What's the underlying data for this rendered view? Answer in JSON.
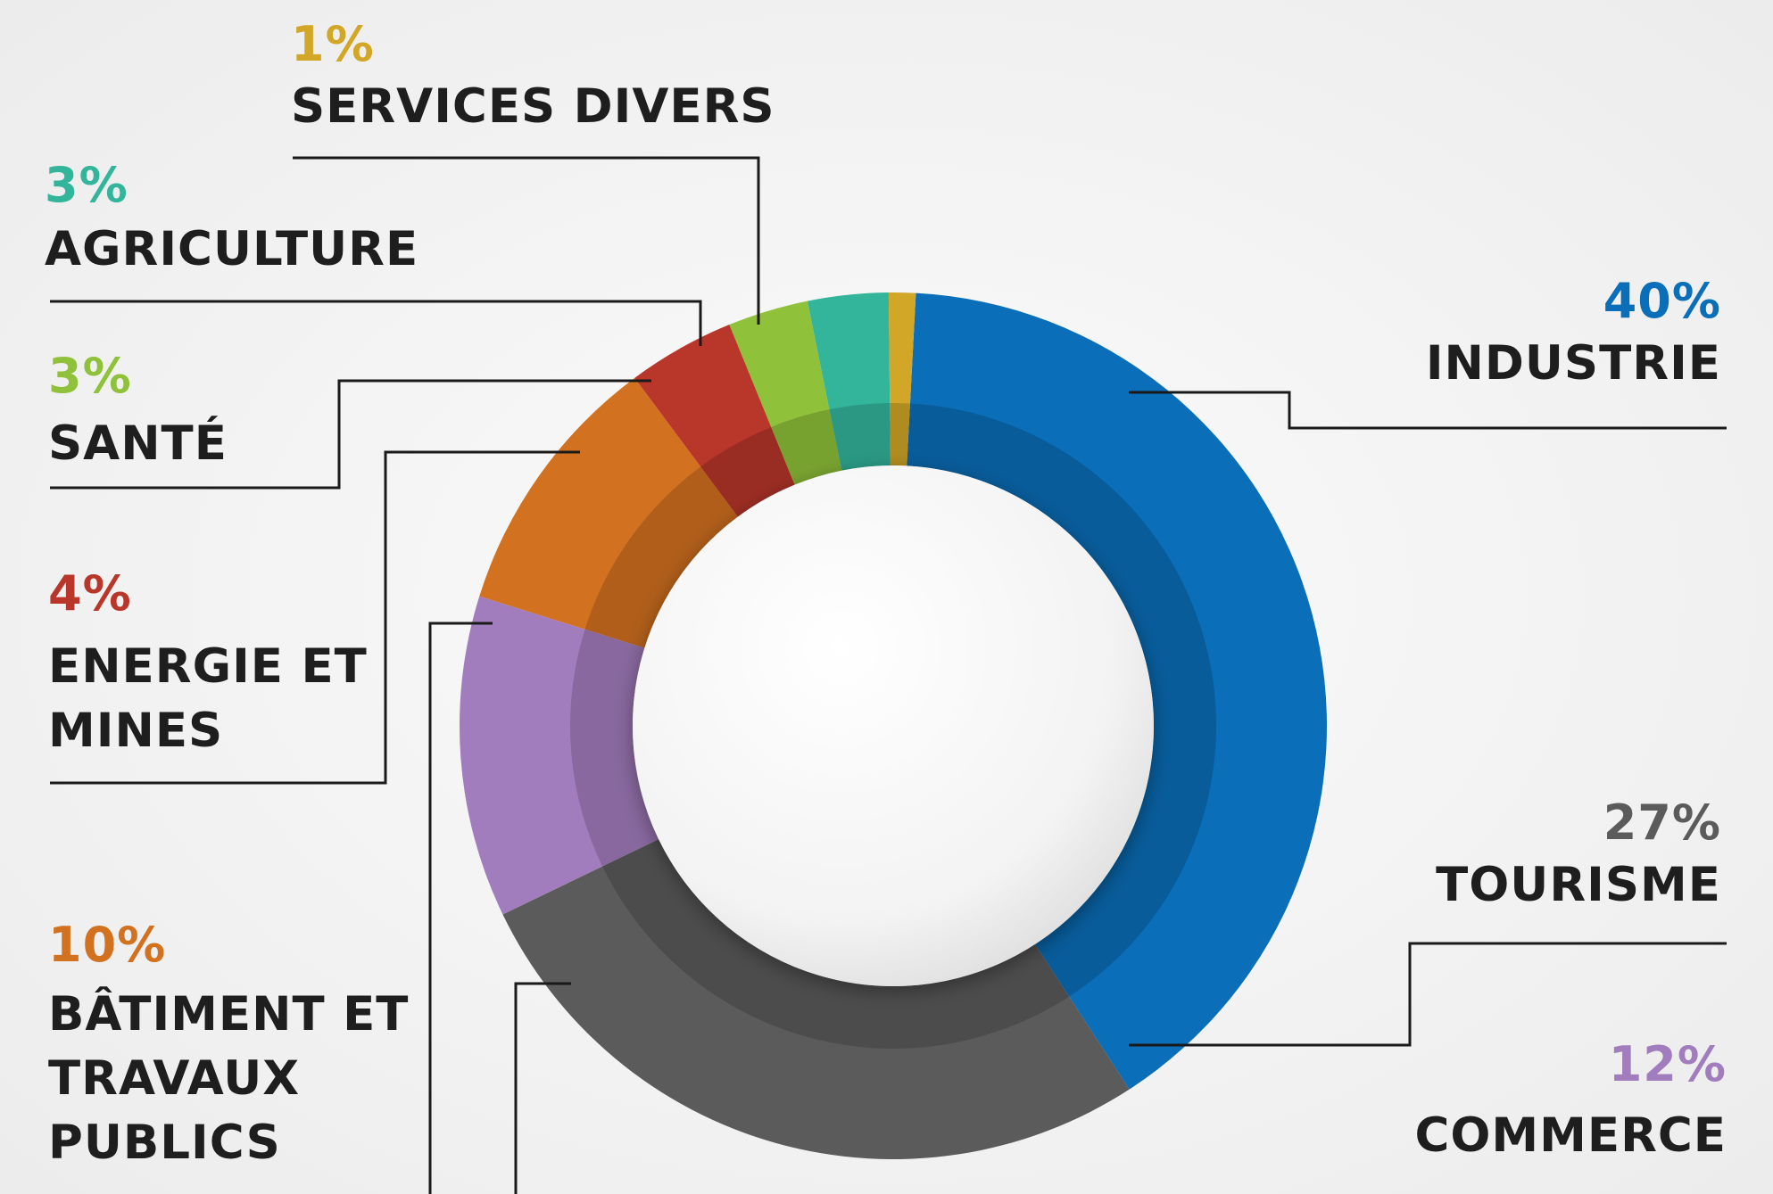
{
  "chart_data": {
    "type": "pie",
    "variant": "donut",
    "slices": [
      {
        "name": "INDUSTRIE",
        "value": 40,
        "value_label": "40%",
        "color": "#0a6eb8",
        "label_color": "#0a6eb8"
      },
      {
        "name": "TOURISME",
        "value": 27,
        "value_label": "27%",
        "color": "#5b5b5b",
        "label_color": "#5b5b5b"
      },
      {
        "name": "COMMERCE",
        "value": 12,
        "value_label": "12%",
        "color": "#a27dbd",
        "label_color": "#a27dbd"
      },
      {
        "name": "BÂTIMENT ET TRAVAUX PUBLICS",
        "value": 10,
        "value_label": "10%",
        "color": "#d2711f",
        "label_color": "#d2711f"
      },
      {
        "name": "ENERGIE ET MINES",
        "value": 4,
        "value_label": "4%",
        "color": "#b8362a",
        "label_color": "#b8362a"
      },
      {
        "name": "SANTÉ",
        "value": 3,
        "value_label": "3%",
        "color": "#8fc13a",
        "label_color": "#8fc13a"
      },
      {
        "name": "AGRICULTURE",
        "value": 3,
        "value_label": "3%",
        "color": "#33b59c",
        "label_color": "#33b59c"
      },
      {
        "name": "SERVICES DIVERS",
        "value": 1,
        "value_label": "1%",
        "color": "#d2a727",
        "label_color": "#d2a727"
      }
    ]
  },
  "labels": {
    "industrie": {
      "pct": "40%",
      "name": "INDUSTRIE"
    },
    "tourisme": {
      "pct": "27%",
      "name": "TOURISME"
    },
    "commerce": {
      "pct": "12%",
      "name": "COMMERCE"
    },
    "batiment": {
      "pct": "10%",
      "name_1": "BÂTIMENT ET",
      "name_2": "TRAVAUX",
      "name_3": "PUBLICS"
    },
    "energie": {
      "pct": "4%",
      "name_1": "ENERGIE ET",
      "name_2": "MINES"
    },
    "sante": {
      "pct": "3%",
      "name": "SANTÉ"
    },
    "agriculture": {
      "pct": "3%",
      "name": "AGRICULTURE"
    },
    "services": {
      "pct": "1%",
      "name": "SERVICES DIVERS"
    }
  }
}
